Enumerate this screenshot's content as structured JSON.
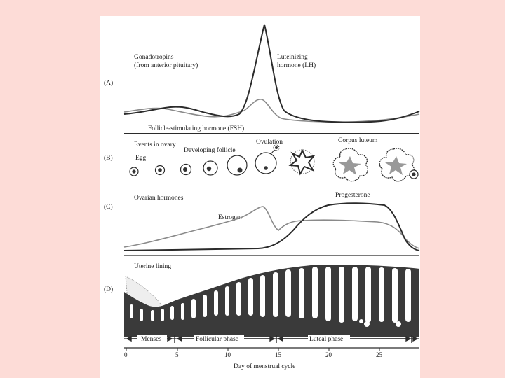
{
  "panel_labels": {
    "a": "(A)",
    "b": "(B)",
    "c": "(C)",
    "d": "(D)"
  },
  "gonadotropins": {
    "title_line1": "Gonadotropins",
    "title_line2": "(from anterior pituitary)",
    "lh_line1": "Luteinizing",
    "lh_line2": "hormone (LH)",
    "fsh": "Follicle-stimulating hormone (FSH)"
  },
  "ovary": {
    "title": "Events in ovary",
    "egg": "Egg",
    "developing": "Developing follicle",
    "ovulation": "Ovulation",
    "corpus": "Corpus luteum"
  },
  "ovarian": {
    "title": "Ovarian hormones",
    "estrogen": "Estrogen",
    "progesterone": "Progesterone"
  },
  "uterine": {
    "title": "Uterine lining"
  },
  "phases": {
    "menses": "Menses",
    "follicular": "Follicular phase",
    "luteal": "Luteal phase"
  },
  "axis": {
    "ticks": [
      "0",
      "5",
      "10",
      "15",
      "20",
      "25"
    ],
    "xlabel": "Day of menstrual cycle"
  },
  "colors": {
    "background": "#fddcd7",
    "panel": "#ffffff",
    "dark": "#2b2b2b",
    "gray": "#8a8a8a"
  }
}
